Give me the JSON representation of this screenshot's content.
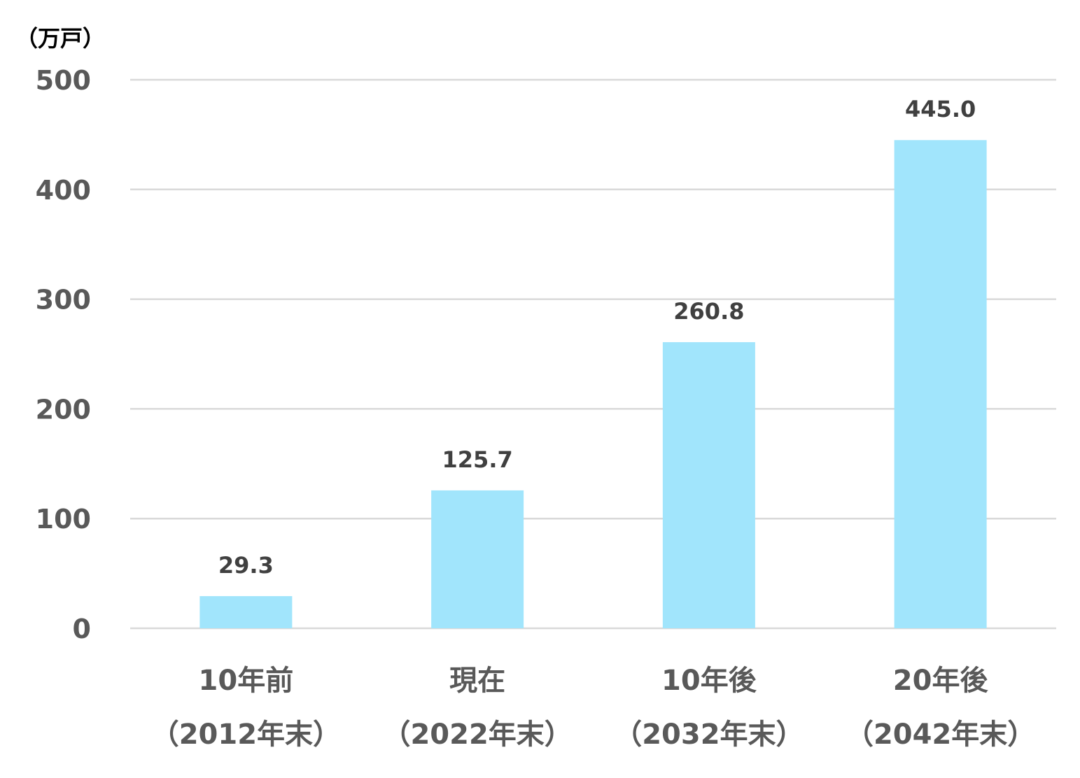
{
  "chart_data": {
    "type": "bar",
    "unit_label": "（万戸）",
    "categories": [
      [
        "10年前",
        "（2012年末）"
      ],
      [
        "現在",
        "（2022年末）"
      ],
      [
        "10年後",
        "（2032年末）"
      ],
      [
        "20年後",
        "（2042年末）"
      ]
    ],
    "values": [
      29.3,
      125.7,
      260.8,
      445.0
    ],
    "value_labels": [
      "29.3",
      "125.7",
      "260.8",
      "445.0"
    ],
    "yticks": [
      0,
      100,
      200,
      300,
      400,
      500
    ],
    "ylim": [
      0,
      500
    ],
    "grid": true,
    "legend": "none",
    "colors": {
      "bar": "#a1e5fc",
      "grid": "#d9d9d9",
      "tick_text": "#595959",
      "data_label_text": "#404040"
    }
  }
}
